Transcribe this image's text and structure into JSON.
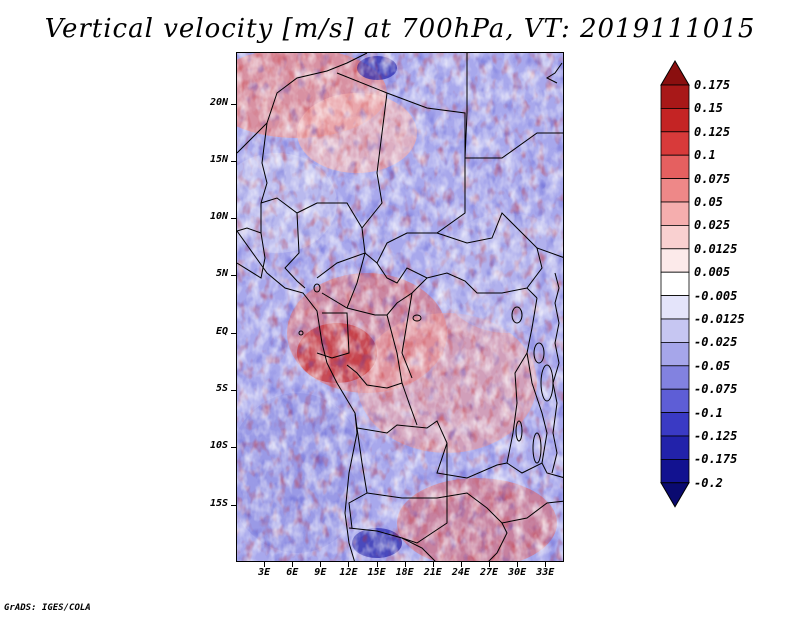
{
  "title": "Vertical velocity [m/s] at 700hPa, VT: 2019111015",
  "footer": "GrADS: IGES/COLA",
  "map": {
    "lat_labels": [
      "20N",
      "15N",
      "10N",
      "5N",
      "EQ",
      "5S",
      "10S",
      "15S"
    ],
    "lat_values": [
      20,
      15,
      10,
      5,
      0,
      -5,
      -10,
      -15
    ],
    "lon_labels": [
      "3E",
      "6E",
      "9E",
      "12E",
      "15E",
      "18E",
      "21E",
      "24E",
      "27E",
      "30E",
      "33E"
    ],
    "lon_values": [
      3,
      6,
      9,
      12,
      15,
      18,
      21,
      24,
      27,
      30,
      33
    ],
    "lat_range": [
      -20,
      24.5
    ],
    "lon_range": [
      0,
      35
    ]
  },
  "colorbar": {
    "labels": [
      "0.175",
      "0.15",
      "0.125",
      "0.1",
      "0.075",
      "0.05",
      "0.025",
      "0.0125",
      "0.005",
      "-0.005",
      "-0.0125",
      "-0.025",
      "-0.05",
      "-0.075",
      "-0.1",
      "-0.125",
      "-0.175",
      "-0.2"
    ],
    "colors": [
      "#8a0f0f",
      "#a81818",
      "#c42424",
      "#d83a3a",
      "#e56060",
      "#ee8888",
      "#f5aeae",
      "#f9d0d0",
      "#fceaea",
      "#ffffff",
      "#e4e4fa",
      "#c6c6f2",
      "#a6a6ea",
      "#8282e0",
      "#5e5ed6",
      "#3a3ac4",
      "#2222aa",
      "#121290",
      "#0a0a70"
    ]
  }
}
